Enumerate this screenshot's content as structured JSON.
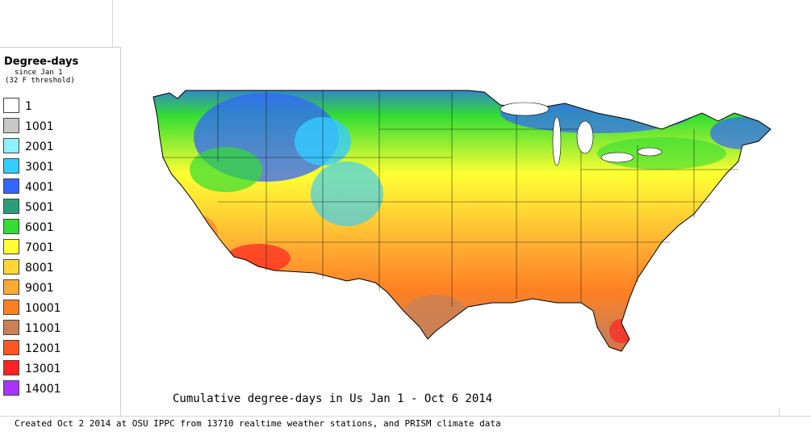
{
  "legend": {
    "title": "Degree-days",
    "subtitle_1": "since Jan 1",
    "subtitle_2": "(32 F threshold)",
    "items": [
      {
        "label": "1",
        "color": "#ffffff"
      },
      {
        "label": "1001",
        "color": "#c8c8c8"
      },
      {
        "label": "2001",
        "color": "#8ff0ff"
      },
      {
        "label": "3001",
        "color": "#33ccff"
      },
      {
        "label": "4001",
        "color": "#3366ff"
      },
      {
        "label": "5001",
        "color": "#2a9d7a"
      },
      {
        "label": "6001",
        "color": "#33dd33"
      },
      {
        "label": "7001",
        "color": "#ffff33"
      },
      {
        "label": "8001",
        "color": "#ffd633"
      },
      {
        "label": "9001",
        "color": "#ffaa33"
      },
      {
        "label": "10001",
        "color": "#ff8022"
      },
      {
        "label": "11001",
        "color": "#c98055"
      },
      {
        "label": "12001",
        "color": "#ff5522"
      },
      {
        "label": "13001",
        "color": "#ff2222"
      },
      {
        "label": "14001",
        "color": "#aa33ff"
      }
    ]
  },
  "map": {
    "title": "Cumulative degree-days in Us  Jan 1 - Oct 6 2014"
  },
  "credit": "Created Oct 2 2014 at OSU IPPC from 13710 realtime weather stations, and PRISM climate data"
}
